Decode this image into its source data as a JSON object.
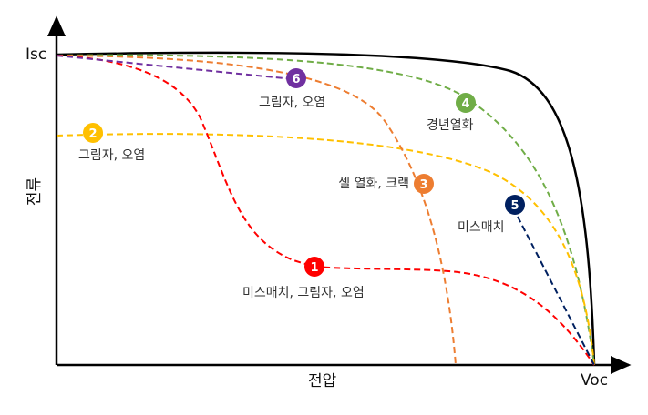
{
  "axes": {
    "y_label": "전류",
    "x_label": "전압",
    "y_mark": "Isc",
    "x_mark": "Voc"
  },
  "curves": [
    {
      "id": "normal",
      "color": "#000000",
      "style": "solid"
    },
    {
      "id": "1",
      "number": "1",
      "label": "미스매치, 그림자, 오염",
      "color": "#ff0000"
    },
    {
      "id": "2",
      "number": "2",
      "label": "그림자, 오염",
      "color": "#ffc000"
    },
    {
      "id": "3",
      "number": "3",
      "label": "셀 열화, 크랙",
      "color": "#ed7d31"
    },
    {
      "id": "4",
      "number": "4",
      "label": "경년열화",
      "color": "#70ad47"
    },
    {
      "id": "5",
      "number": "5",
      "label": "미스매치",
      "color": "#002060"
    },
    {
      "id": "6",
      "number": "6",
      "label": "그림자, 오염",
      "color": "#7030a0"
    }
  ]
}
